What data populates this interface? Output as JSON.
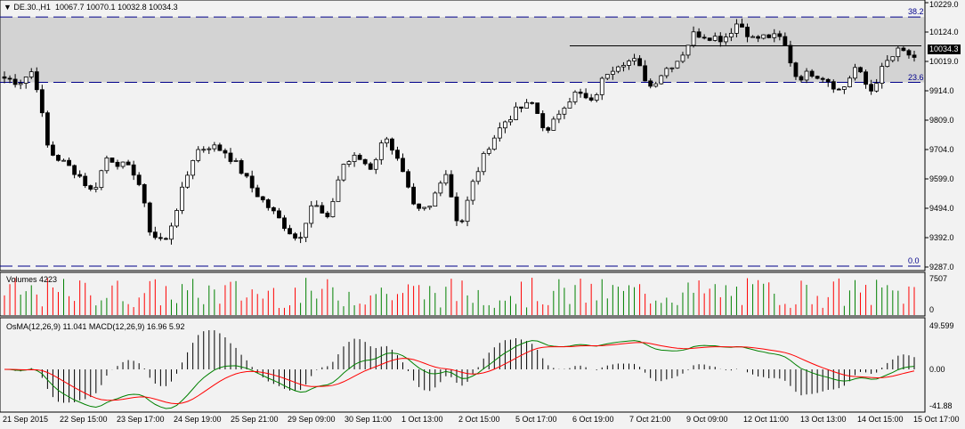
{
  "header": {
    "symbol": "DE.30.,H1",
    "open": "10067.7",
    "high": "10070.1",
    "low": "10032.8",
    "close": "10034.3"
  },
  "price_axis": [
    "10229.0",
    "10124.0",
    "10019.0",
    "9914.0",
    "9809.0",
    "9704.0",
    "9599.0",
    "9494.0",
    "9392.0",
    "9287.0"
  ],
  "current_price": "10034.3",
  "fib_levels": [
    {
      "label": "38.2",
      "price": 10178
    },
    {
      "label": "23.6",
      "price": 9945
    },
    {
      "label": "0.0",
      "price": 9290
    }
  ],
  "shade_range": [
    9945,
    10178
  ],
  "horizontal_line": 10075,
  "volume": {
    "label": "Volumes 4223",
    "axis_max": "7507",
    "axis_min": "0",
    "up_color": "#008000",
    "down_color": "#ff0000"
  },
  "macd": {
    "label": "OsMA(12,26,9) 11.041  MACD(12,26,9) 16.96 5.92",
    "axis_max": "49.599",
    "axis_zero": "0.00",
    "axis_min": "-41.88",
    "main_color": "#008000",
    "signal_color": "#ff0000"
  },
  "time_axis": [
    "21 Sep 2015",
    "22 Sep 15:00",
    "23 Sep 17:00",
    "24 Sep 19:00",
    "25 Sep 21:00",
    "29 Sep 09:00",
    "30 Sep 11:00",
    "1 Oct 13:00",
    "2 Oct 15:00",
    "5 Oct 17:00",
    "6 Oct 19:00",
    "7 Oct 21:00",
    "9 Oct 09:00",
    "12 Oct 11:00",
    "13 Oct 13:00",
    "14 Oct 15:00",
    "15 Oct 17:00"
  ],
  "chart_data": {
    "type": "candlestick",
    "ylim": [
      9287,
      10229
    ],
    "closes": [
      9960,
      9945,
      9990,
      9700,
      9660,
      9620,
      9550,
      9680,
      9650,
      9620,
      9400,
      9380,
      9540,
      9700,
      9720,
      9700,
      9640,
      9560,
      9500,
      9440,
      9380,
      9520,
      9450,
      9650,
      9680,
      9640,
      9760,
      9640,
      9480,
      9500,
      9640,
      9420,
      9600,
      9720,
      9800,
      9850,
      9870,
      9760,
      9860,
      9910,
      9870,
      9980,
      10020,
      10020,
      9930,
      9990,
      10030,
      10120,
      10110,
      10100,
      10160,
      10100,
      10110,
      10100,
      9960,
      9980,
      9960,
      9910,
      10000,
      9910,
      10010,
      10060,
      10034
    ]
  }
}
